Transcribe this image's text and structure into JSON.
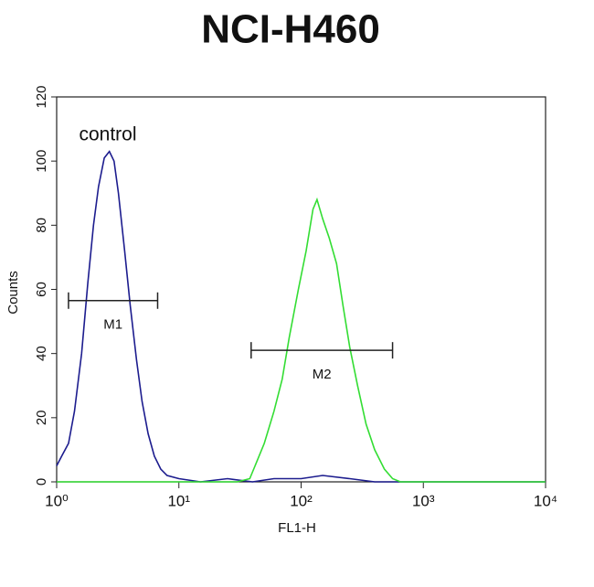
{
  "chart_data": {
    "type": "histogram-overlay",
    "title": "NCI-H460",
    "x_label": "FL1-H",
    "y_label": "Counts",
    "x_log": true,
    "xlim": [
      1,
      10000
    ],
    "xticks": [
      {
        "value": 1,
        "label": "10⁰"
      },
      {
        "value": 10,
        "label": "10¹"
      },
      {
        "value": 100,
        "label": "10²"
      },
      {
        "value": 1000,
        "label": "10³"
      },
      {
        "value": 10000,
        "label": "10⁴"
      }
    ],
    "ylim": [
      0,
      120
    ],
    "yticks": [
      0,
      20,
      40,
      60,
      80,
      100,
      120
    ],
    "annotation": "control",
    "series": [
      {
        "color": "#1c1c8e",
        "x": [
          1.0,
          1.1,
          1.25,
          1.4,
          1.6,
          1.8,
          2.0,
          2.2,
          2.45,
          2.7,
          2.95,
          3.2,
          3.6,
          4.0,
          4.5,
          5.0,
          5.6,
          6.3,
          7.1,
          8.0,
          10,
          15,
          25,
          40,
          60,
          100,
          150,
          250,
          400,
          1000,
          10000
        ],
        "values": [
          5,
          8,
          12,
          22,
          40,
          62,
          80,
          92,
          101,
          103,
          100,
          90,
          72,
          55,
          38,
          25,
          15,
          8,
          4,
          2,
          1,
          0,
          1,
          0,
          1,
          1,
          2,
          1,
          0,
          0,
          0
        ]
      },
      {
        "color": "#33dd33",
        "x": [
          1,
          30,
          38,
          42,
          50,
          60,
          70,
          80,
          95,
          110,
          125,
          135,
          150,
          170,
          195,
          220,
          250,
          290,
          340,
          400,
          480,
          560,
          650,
          10000
        ],
        "values": [
          0,
          0,
          1,
          5,
          12,
          22,
          32,
          45,
          60,
          72,
          85,
          88,
          82,
          76,
          68,
          55,
          42,
          30,
          18,
          10,
          4,
          1,
          0,
          0
        ]
      }
    ],
    "markers": [
      {
        "label": "M1",
        "x": [
          1.25,
          6.7
        ],
        "y": 56.5
      },
      {
        "label": "M2",
        "x": [
          39,
          560
        ],
        "y": 41
      }
    ]
  }
}
